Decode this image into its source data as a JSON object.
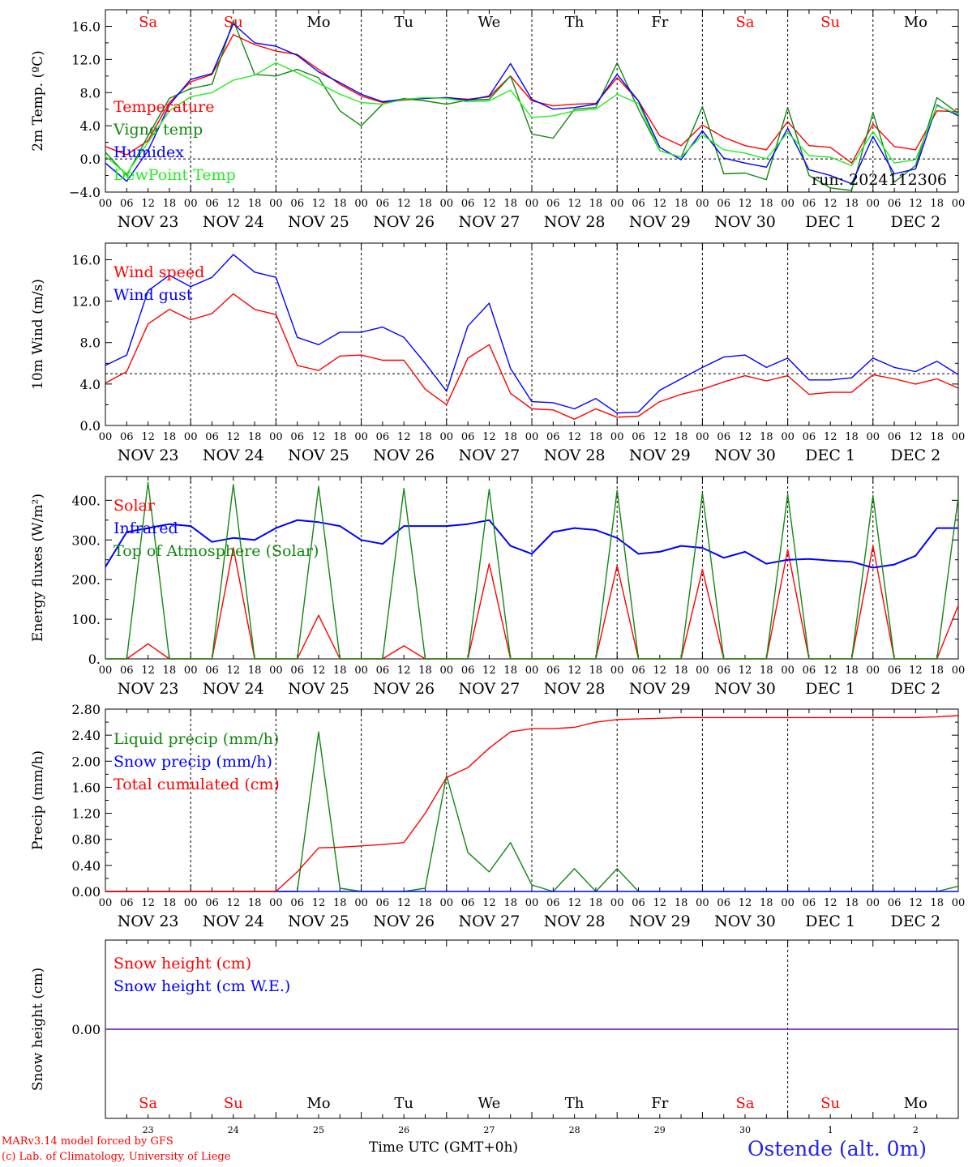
{
  "footer": {
    "model_line": "MARv3.14 model forced by GFS",
    "copyright_line": "(c) Lab. of Climatology, University of Liege",
    "time_label": "Time UTC (GMT+0h)",
    "station": "Ostende (alt. 0m)"
  },
  "colors": {
    "red": "#ff0000",
    "darkgreen": "#118811",
    "blue": "#0000ff",
    "lightgreen": "#22ee22",
    "purple": "#7733aa"
  },
  "chart_data": [
    {
      "type": "line",
      "id": "temp",
      "ylabel": "2m Temp. (ºC)",
      "ylim": [
        -4,
        18
      ],
      "yticks": [
        -4,
        0,
        4,
        8,
        12,
        16
      ],
      "ytick_labels": [
        "−4.0",
        "0.0",
        "4.0",
        "8.0",
        "12.0",
        "16.0"
      ],
      "reference_line": 0,
      "weekday_labels": [
        "Sa",
        "Su",
        "Mo",
        "Tu",
        "We",
        "Th",
        "Fr",
        "Sa",
        "Su",
        "Mo"
      ],
      "weekday_colors": [
        "red",
        "red",
        "black",
        "black",
        "black",
        "black",
        "black",
        "red",
        "red",
        "black"
      ],
      "annotation": "run: 2024112306",
      "x_hours": [
        0,
        6,
        12,
        18,
        24,
        30,
        36,
        42,
        48,
        54,
        60,
        66,
        72,
        78,
        84,
        90,
        96,
        102,
        108,
        114,
        120,
        126,
        132,
        138,
        144,
        150,
        156,
        162,
        168,
        174,
        180,
        186,
        192,
        198,
        204,
        210,
        216,
        222,
        228,
        234,
        240
      ],
      "series": [
        {
          "name": "Temperature",
          "color": "red",
          "values": [
            1.5,
            0.5,
            2.2,
            6.8,
            9.3,
            10.2,
            15.0,
            13.8,
            13.0,
            12.6,
            10.8,
            9.0,
            7.6,
            6.8,
            7.1,
            7.3,
            7.4,
            7.2,
            7.5,
            10.0,
            7.0,
            6.4,
            6.6,
            6.7,
            9.8,
            7.0,
            2.8,
            1.6,
            4.1,
            2.6,
            1.6,
            1.1,
            4.5,
            1.6,
            1.4,
            -0.5,
            4.2,
            1.5,
            1.1,
            5.8,
            5.7
          ]
        },
        {
          "name": "Vigne temp",
          "color": "darkgreen",
          "values": [
            0.8,
            -2.0,
            2.8,
            7.3,
            8.5,
            9.0,
            16.7,
            10.2,
            10.0,
            10.8,
            9.8,
            5.8,
            4.0,
            6.6,
            7.3,
            7.0,
            6.6,
            7.1,
            7.2,
            10.0,
            3.0,
            2.5,
            6.0,
            6.2,
            11.6,
            6.0,
            1.0,
            0.2,
            6.3,
            -1.8,
            -1.7,
            -2.5,
            6.2,
            -2.0,
            -3.5,
            -3.8,
            5.6,
            -2.8,
            -0.8,
            7.4,
            5.5
          ]
        },
        {
          "name": "Humidex",
          "color": "blue",
          "values": [
            -0.5,
            -2.7,
            1.0,
            6.5,
            9.6,
            10.3,
            16.3,
            14.0,
            13.6,
            12.5,
            10.5,
            9.2,
            7.8,
            6.9,
            7.2,
            7.3,
            7.4,
            7.1,
            7.6,
            11.5,
            7.2,
            6.0,
            6.2,
            6.6,
            10.2,
            7.0,
            1.4,
            -0.1,
            3.4,
            0.1,
            -0.5,
            -1.0,
            3.7,
            -1.3,
            -2.0,
            -3.0,
            2.7,
            -1.8,
            -1.2,
            6.5,
            5.2
          ]
        },
        {
          "name": "DewPoint Temp",
          "color": "lightgreen",
          "values": [
            0.3,
            -1.8,
            2.0,
            5.8,
            7.5,
            8.0,
            9.5,
            10.1,
            11.6,
            10.4,
            9.1,
            7.8,
            6.8,
            6.6,
            7.2,
            7.4,
            7.3,
            6.9,
            7.0,
            8.3,
            5.0,
            5.2,
            5.8,
            6.0,
            7.8,
            6.7,
            1.0,
            0.2,
            2.9,
            1.1,
            0.7,
            0.0,
            3.2,
            0.4,
            0.2,
            -0.8,
            3.3,
            -0.5,
            -0.1,
            6.4,
            5.4
          ]
        }
      ]
    },
    {
      "type": "line",
      "id": "wind",
      "ylabel": "10m Wind (m/s)",
      "ylim": [
        0,
        17.6
      ],
      "yticks": [
        0,
        4,
        8,
        12,
        16
      ],
      "ytick_labels": [
        "0.0",
        "4.0",
        "8.0",
        "12.0",
        "16.0"
      ],
      "reference_line": 5,
      "x_hours": [
        0,
        6,
        12,
        18,
        24,
        30,
        36,
        42,
        48,
        54,
        60,
        66,
        72,
        78,
        84,
        90,
        96,
        102,
        108,
        114,
        120,
        126,
        132,
        138,
        144,
        150,
        156,
        162,
        168,
        174,
        180,
        186,
        192,
        198,
        204,
        210,
        216,
        222,
        228,
        234,
        240
      ],
      "series": [
        {
          "name": "Wind speed",
          "color": "red",
          "values": [
            4.1,
            5.2,
            9.8,
            11.2,
            10.2,
            10.8,
            12.7,
            11.2,
            10.7,
            5.8,
            5.3,
            6.7,
            6.8,
            6.3,
            6.3,
            3.5,
            2.0,
            6.5,
            7.8,
            3.1,
            1.6,
            1.5,
            0.6,
            1.6,
            0.8,
            0.9,
            2.3,
            3.0,
            3.5,
            4.2,
            4.8,
            4.3,
            4.8,
            3.0,
            3.2,
            3.2,
            4.9,
            4.5,
            4.0,
            4.5,
            3.6
          ]
        },
        {
          "name": "Wind gust",
          "color": "blue",
          "values": [
            5.8,
            6.8,
            13.0,
            14.5,
            13.4,
            14.3,
            16.5,
            14.8,
            14.3,
            8.5,
            7.8,
            9.0,
            9.0,
            9.5,
            8.5,
            6.0,
            3.3,
            9.6,
            11.8,
            5.5,
            2.3,
            2.2,
            1.6,
            2.6,
            1.2,
            1.3,
            3.4,
            4.5,
            5.6,
            6.6,
            6.8,
            5.6,
            6.5,
            4.4,
            4.4,
            4.6,
            6.5,
            5.6,
            5.2,
            6.2,
            4.9
          ]
        }
      ]
    },
    {
      "type": "line",
      "id": "energy",
      "ylabel": "Energy fluxes (W/m²)",
      "ylim": [
        0,
        460
      ],
      "yticks": [
        0,
        100,
        200,
        300,
        400
      ],
      "ytick_labels": [
        "0.",
        "100.",
        "200.",
        "300.",
        "400."
      ],
      "reference_line": null,
      "x_hours": [
        0,
        6,
        12,
        18,
        24,
        30,
        36,
        42,
        48,
        54,
        60,
        66,
        72,
        78,
        84,
        90,
        96,
        102,
        108,
        114,
        120,
        126,
        132,
        138,
        144,
        150,
        156,
        162,
        168,
        174,
        180,
        186,
        192,
        198,
        204,
        210,
        216,
        222,
        228,
        234,
        240
      ],
      "series": [
        {
          "name": "Solar",
          "color": "red",
          "values": [
            0,
            0,
            38,
            0,
            0,
            0,
            280,
            0,
            0,
            0,
            110,
            0,
            0,
            0,
            33,
            0,
            0,
            0,
            240,
            0,
            0,
            0,
            0,
            0,
            235,
            0,
            0,
            0,
            225,
            0,
            0,
            0,
            275,
            0,
            0,
            0,
            285,
            0,
            0,
            0,
            135
          ]
        },
        {
          "name": "Infrared",
          "color": "blue",
          "values": [
            232,
            320,
            330,
            340,
            335,
            295,
            305,
            300,
            330,
            350,
            345,
            335,
            300,
            290,
            335,
            335,
            335,
            340,
            350,
            285,
            265,
            320,
            330,
            325,
            305,
            265,
            270,
            285,
            280,
            255,
            270,
            240,
            250,
            252,
            248,
            245,
            230,
            238,
            260,
            330,
            330
          ]
        },
        {
          "name": "Top of Atmosphere (Solar)",
          "color": "darkgreen",
          "values": [
            0,
            0,
            445,
            0,
            0,
            0,
            440,
            0,
            0,
            0,
            435,
            0,
            0,
            0,
            430,
            0,
            0,
            0,
            428,
            0,
            0,
            0,
            0,
            0,
            425,
            0,
            0,
            0,
            418,
            0,
            0,
            0,
            415,
            0,
            0,
            0,
            412,
            0,
            0,
            0,
            408
          ]
        }
      ]
    },
    {
      "type": "line",
      "id": "precip",
      "ylabel": "Precip (mm/h)",
      "ylim": [
        0,
        2.8
      ],
      "yticks": [
        0,
        0.4,
        0.8,
        1.2,
        1.6,
        2.0,
        2.4,
        2.8
      ],
      "ytick_labels": [
        "0.00",
        "0.40",
        "0.80",
        "1.20",
        "1.60",
        "2.00",
        "2.40",
        "2.80"
      ],
      "reference_line": null,
      "x_hours": [
        0,
        6,
        12,
        18,
        24,
        30,
        36,
        42,
        48,
        54,
        60,
        66,
        72,
        78,
        84,
        90,
        96,
        102,
        108,
        114,
        120,
        126,
        132,
        138,
        144,
        150,
        156,
        162,
        168,
        174,
        180,
        186,
        192,
        198,
        204,
        210,
        216,
        222,
        228,
        234,
        240
      ],
      "series": [
        {
          "name": "Liquid precip (mm/h)",
          "color": "darkgreen",
          "values": [
            0,
            0,
            0,
            0,
            0,
            0,
            0,
            0,
            0,
            0,
            2.45,
            0.05,
            0,
            0,
            0,
            0.05,
            1.78,
            0.6,
            0.3,
            0.75,
            0.1,
            0,
            0.35,
            0,
            0.35,
            0,
            0,
            0,
            0,
            0,
            0,
            0,
            0,
            0,
            0,
            0,
            0,
            0,
            0,
            0,
            0.08
          ]
        },
        {
          "name": "Snow precip (mm/h)",
          "color": "blue",
          "values": [
            0,
            0,
            0,
            0,
            0,
            0,
            0,
            0,
            0,
            0,
            0,
            0,
            0,
            0,
            0,
            0,
            0,
            0,
            0,
            0,
            0,
            0,
            0,
            0,
            0,
            0,
            0,
            0,
            0,
            0,
            0,
            0,
            0,
            0,
            0,
            0,
            0,
            0,
            0,
            0,
            0
          ]
        },
        {
          "name": "Total cumulated (cm)",
          "color": "red",
          "values": [
            0,
            0,
            0,
            0,
            0,
            0,
            0,
            0,
            0,
            0.3,
            0.67,
            0.68,
            0.7,
            0.72,
            0.75,
            1.2,
            1.75,
            1.9,
            2.2,
            2.45,
            2.5,
            2.5,
            2.52,
            2.6,
            2.64,
            2.65,
            2.66,
            2.67,
            2.67,
            2.67,
            2.67,
            2.67,
            2.67,
            2.67,
            2.67,
            2.67,
            2.67,
            2.67,
            2.67,
            2.68,
            2.7
          ]
        }
      ]
    },
    {
      "type": "line",
      "id": "snow",
      "ylabel": "Snow height (cm)",
      "ylim": [
        -1,
        1
      ],
      "yticks": [
        0
      ],
      "ytick_labels": [
        "0.00"
      ],
      "reference_line": null,
      "weekday_labels": [
        "Sa",
        "Su",
        "Mo",
        "Tu",
        "We",
        "Th",
        "Fr",
        "Sa",
        "Su",
        "Mo"
      ],
      "weekday_colors": [
        "red",
        "red",
        "black",
        "black",
        "black",
        "black",
        "black",
        "red",
        "red",
        "black"
      ],
      "day_numbers": [
        "23",
        "24",
        "25",
        "26",
        "27",
        "28",
        "29",
        "30",
        "1",
        "2"
      ],
      "x_hours": [
        0,
        240
      ],
      "series": [
        {
          "name": "Snow height (cm)",
          "color": "red",
          "values": [
            0,
            0
          ]
        },
        {
          "name": "Snow height (cm W.E.)",
          "color": "blue",
          "values": [
            0,
            0
          ]
        }
      ]
    }
  ],
  "date_labels": [
    "NOV 23",
    "NOV 24",
    "NOV 25",
    "NOV 26",
    "NOV 27",
    "NOV 28",
    "NOV 29",
    "NOV 30",
    "DEC  1",
    "DEC  2"
  ],
  "hour_labels": [
    "00",
    "06",
    "12",
    "18"
  ],
  "hour_end_label": "00"
}
